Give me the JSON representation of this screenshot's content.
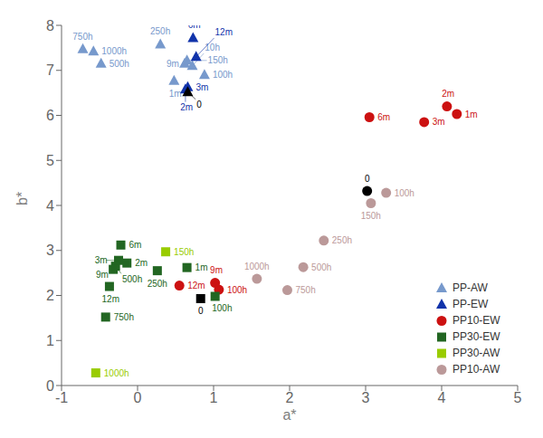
{
  "chart_data": {
    "type": "scatter",
    "x_label": "a*",
    "y_label": "b*",
    "xlim": [
      -1,
      5
    ],
    "ylim": [
      0,
      8
    ],
    "xticks": [
      -1,
      0,
      1,
      2,
      3,
      4,
      5
    ],
    "yticks": [
      0,
      1,
      2,
      3,
      4,
      5,
      6,
      7,
      8
    ],
    "grid": false,
    "legend": "lower right",
    "series": [
      {
        "name": "PP-AW",
        "color": "#7799CC",
        "marker": "triangle",
        "x": [
          -0.72,
          -0.58,
          -0.48,
          0.3,
          0.62,
          0.65,
          0.72,
          0.88,
          0.48
        ],
        "values": [
          7.47,
          7.42,
          7.15,
          7.58,
          7.15,
          7.22,
          7.1,
          6.9,
          6.77
        ],
        "labels": [
          "750h",
          "1000h",
          "500h",
          "250h",
          "9m",
          "150h",
          "10h",
          "100h",
          "1m"
        ]
      },
      {
        "name": "PP-EW",
        "color": "#1133AA",
        "marker": "triangle",
        "x": [
          0.73,
          0.77,
          0.66,
          0.63,
          0.66
        ],
        "values": [
          7.72,
          7.3,
          6.63,
          6.58,
          6.52
        ],
        "labels": [
          "6m",
          "12m",
          "3m",
          "2m",
          "0"
        ],
        "colors": [
          "#1133AA",
          "#1133AA",
          "#1133AA",
          "#1133AA",
          "#000000"
        ]
      },
      {
        "name": "PP10-EW",
        "color": "#CC1111",
        "marker": "circle",
        "x": [
          3.05,
          3.77,
          4.07,
          4.2,
          1.02,
          1.07,
          0.55
        ],
        "values": [
          5.96,
          5.85,
          6.2,
          6.03,
          2.28,
          2.13,
          2.22
        ],
        "labels": [
          "6m",
          "3m",
          "2m",
          "1m",
          "9m",
          "100h",
          "12m"
        ]
      },
      {
        "name": "PP30-EW",
        "color": "#226622",
        "marker": "square",
        "x": [
          -0.22,
          -0.25,
          -0.29,
          -0.32,
          -0.14,
          0.26,
          0.65,
          -0.37,
          -0.42,
          1.02,
          0.83
        ],
        "values": [
          3.12,
          2.78,
          2.65,
          2.58,
          2.72,
          2.55,
          2.62,
          2.2,
          1.52,
          1.98,
          1.93
        ],
        "labels": [
          "6m",
          "3m",
          "500h",
          "9m",
          "2m",
          "250h",
          "1m",
          "12m",
          "750h",
          "100h",
          "0"
        ],
        "colors": [
          "#226622",
          "#226622",
          "#226622",
          "#226622",
          "#226622",
          "#226622",
          "#226622",
          "#226622",
          "#226622",
          "#226622",
          "#000000"
        ]
      },
      {
        "name": "PP30-AW",
        "color": "#99CC00",
        "marker": "square",
        "x": [
          -0.55,
          0.37
        ],
        "values": [
          0.28,
          2.97
        ],
        "labels": [
          "1000h",
          "150h"
        ]
      },
      {
        "name": "PP10-AW",
        "color": "#BB9999",
        "marker": "circle",
        "x": [
          3.27,
          3.07,
          2.45,
          2.18,
          1.97,
          1.57
        ],
        "values": [
          4.28,
          4.05,
          3.22,
          2.63,
          2.12,
          2.37
        ],
        "labels": [
          "100h",
          "150h",
          "250h",
          "500h",
          "750h",
          "1000h"
        ]
      }
    ],
    "annotations": [
      {
        "x": 3.02,
        "y": 4.32,
        "text": "0",
        "color": "#000000",
        "marker": "circle"
      }
    ]
  }
}
